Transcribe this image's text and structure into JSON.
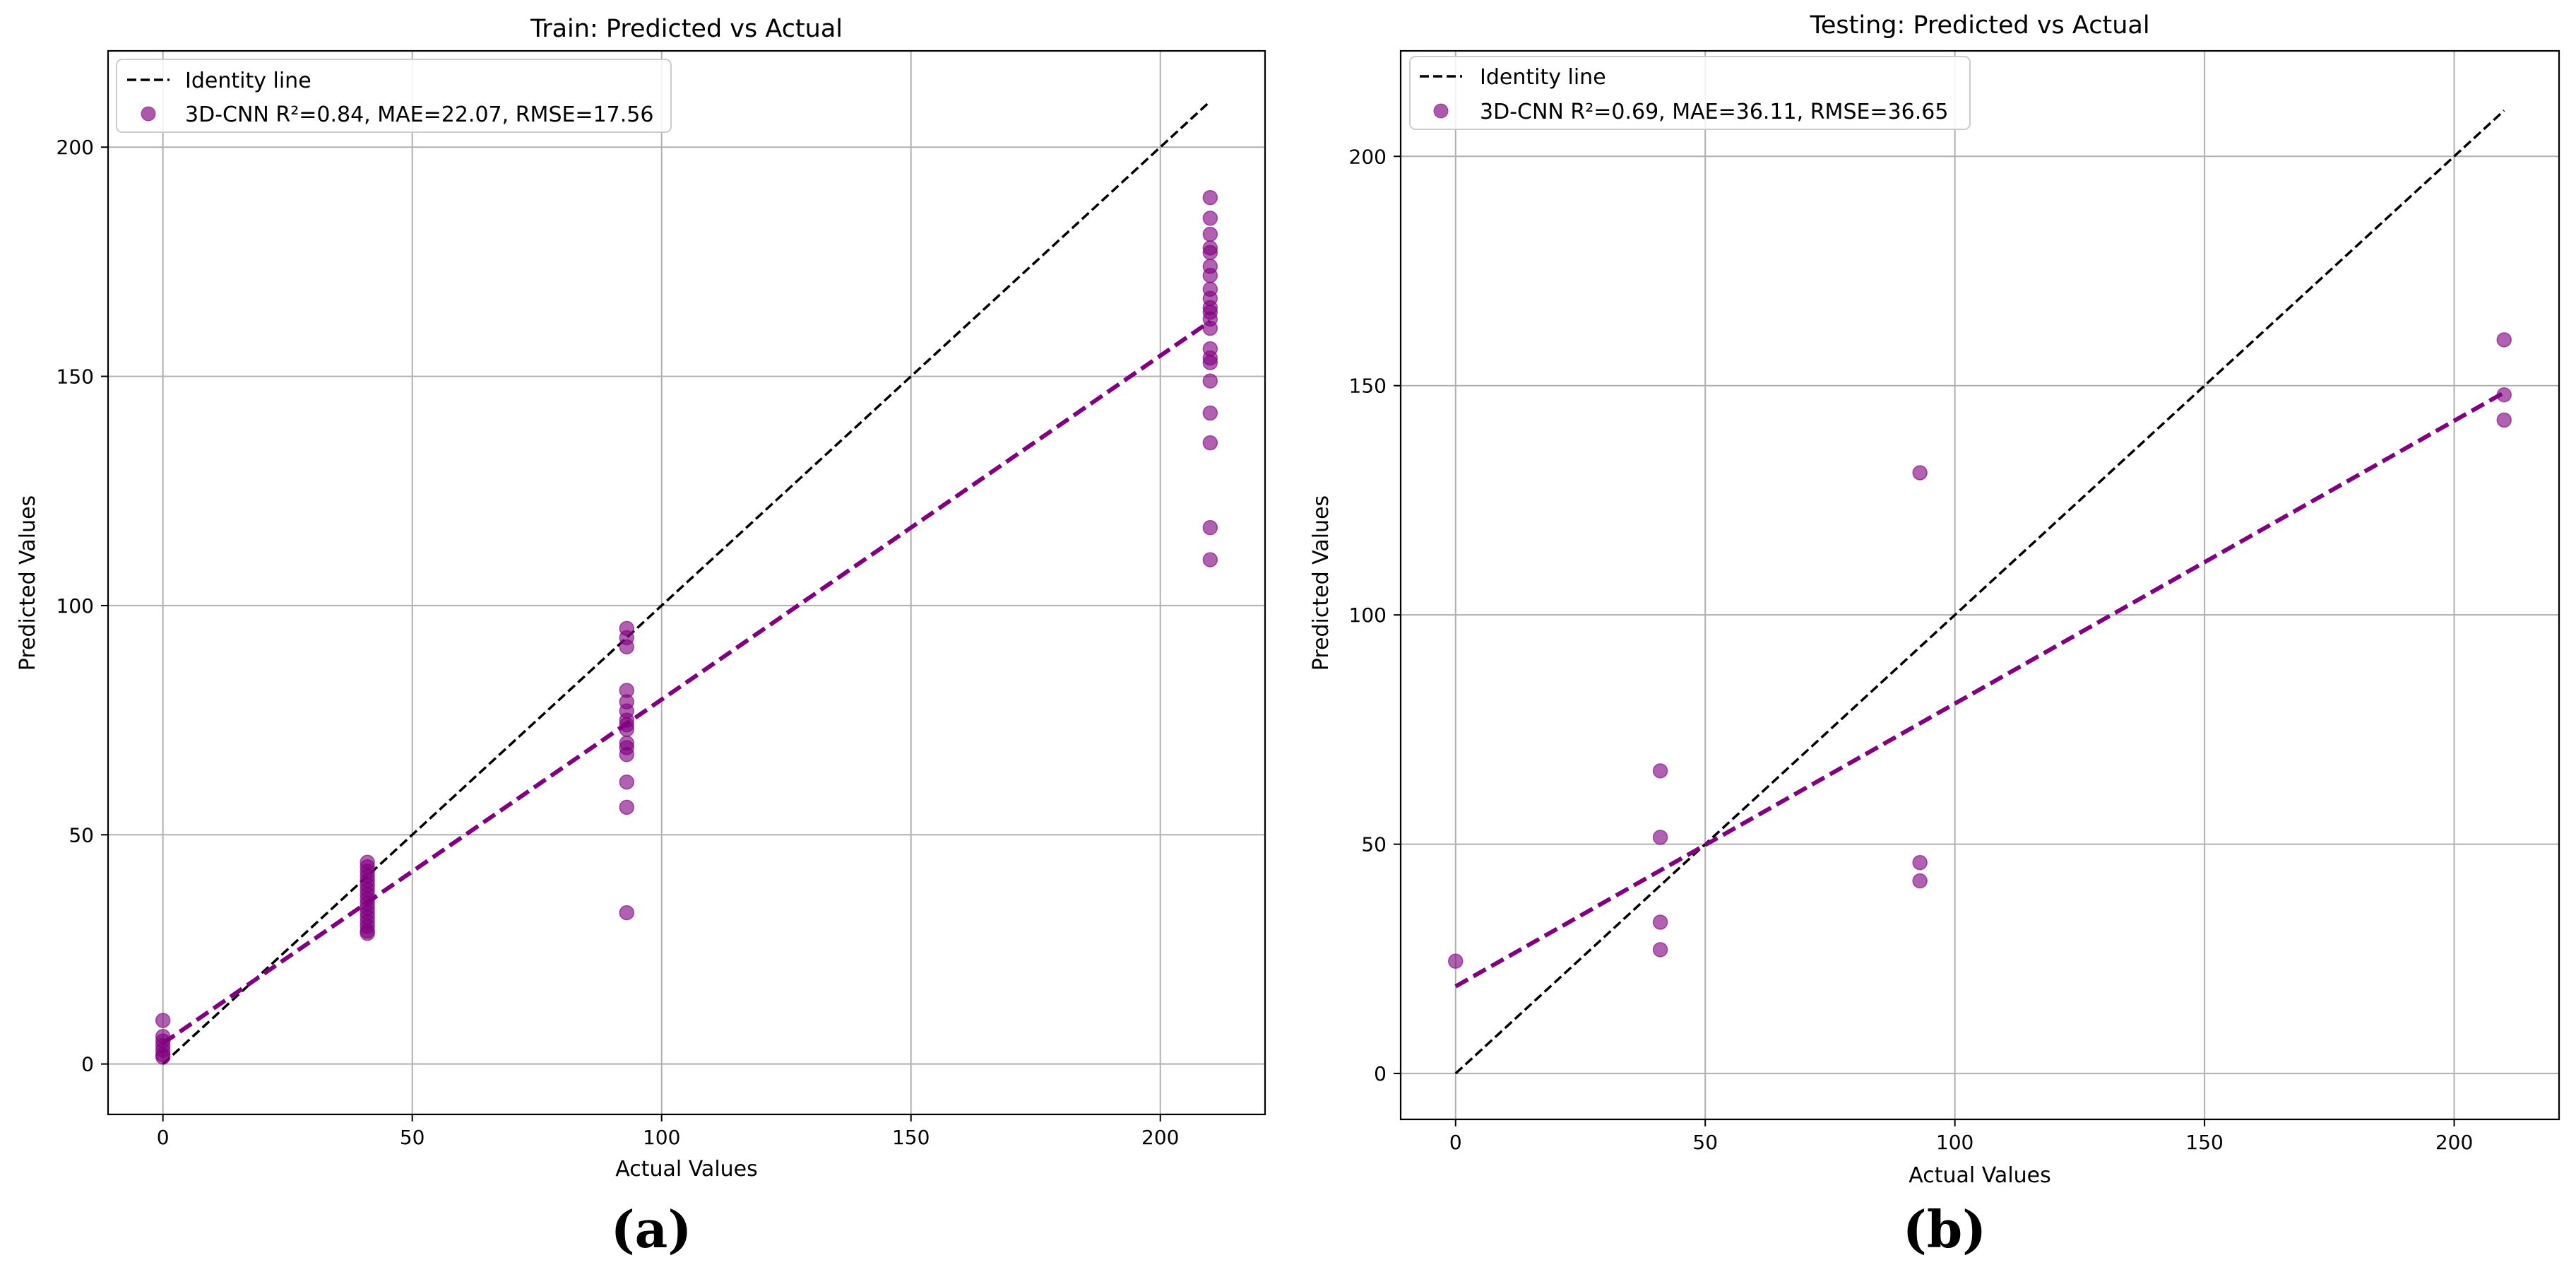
{
  "colors": {
    "scatter": "#800080",
    "fit_line": "#800080",
    "identity_line": "#000000",
    "grid": "#b0b0b0",
    "axes": "#000000"
  },
  "chart_data": [
    {
      "type": "scatter",
      "panel_label": "(a)",
      "title": "Train: Predicted vs Actual",
      "xlabel": "Actual Values",
      "ylabel": "Predicted Values",
      "xlim": [
        -11,
        221
      ],
      "ylim": [
        -11,
        221
      ],
      "xticks": [
        0,
        50,
        100,
        150,
        200
      ],
      "yticks": [
        0,
        50,
        100,
        150,
        200
      ],
      "grid": true,
      "legend_position": "top-left",
      "legend": {
        "identity": "Identity line",
        "scatter": "3D-CNN R²=0.84, MAE=22.07, RMSE=17.56"
      },
      "identity_line": {
        "x": [
          0,
          210
        ],
        "y": [
          0,
          210
        ]
      },
      "fit_line": {
        "x": [
          0,
          210
        ],
        "y": [
          4.5,
          162
        ]
      },
      "points": [
        [
          0,
          9.5
        ],
        [
          0,
          6
        ],
        [
          0,
          5
        ],
        [
          0,
          4
        ],
        [
          0,
          3
        ],
        [
          0,
          2
        ],
        [
          0,
          1.5
        ],
        [
          41,
          44
        ],
        [
          41,
          43
        ],
        [
          41,
          42
        ],
        [
          41,
          41
        ],
        [
          41,
          40
        ],
        [
          41,
          39
        ],
        [
          41,
          38
        ],
        [
          41,
          37
        ],
        [
          41,
          36
        ],
        [
          41,
          35
        ],
        [
          41,
          34
        ],
        [
          41,
          33
        ],
        [
          41,
          32
        ],
        [
          41,
          31
        ],
        [
          41,
          30
        ],
        [
          41,
          29
        ],
        [
          41,
          28.5
        ],
        [
          93,
          95
        ],
        [
          93,
          93
        ],
        [
          93,
          91
        ],
        [
          93,
          81.5
        ],
        [
          93,
          79
        ],
        [
          93,
          77
        ],
        [
          93,
          75
        ],
        [
          93,
          74
        ],
        [
          93,
          73
        ],
        [
          93,
          70
        ],
        [
          93,
          69
        ],
        [
          93,
          67.5
        ],
        [
          93,
          61.5
        ],
        [
          93,
          56
        ],
        [
          93,
          33
        ],
        [
          210,
          189
        ],
        [
          210,
          184.5
        ],
        [
          210,
          181
        ],
        [
          210,
          178
        ],
        [
          210,
          177
        ],
        [
          210,
          174
        ],
        [
          210,
          172
        ],
        [
          210,
          169
        ],
        [
          210,
          167
        ],
        [
          210,
          165
        ],
        [
          210,
          164
        ],
        [
          210,
          162.5
        ],
        [
          210,
          160.5
        ],
        [
          210,
          156
        ],
        [
          210,
          154
        ],
        [
          210,
          153
        ],
        [
          210,
          149
        ],
        [
          210,
          142
        ],
        [
          210,
          135.5
        ],
        [
          210,
          117
        ],
        [
          210,
          110
        ]
      ]
    },
    {
      "type": "scatter",
      "panel_label": "(b)",
      "title": "Testing: Predicted vs Actual",
      "xlabel": "Actual Values",
      "ylabel": "Predicted Values",
      "xlim": [
        -11,
        221
      ],
      "ylim": [
        -10,
        223
      ],
      "xticks": [
        0,
        50,
        100,
        150,
        200
      ],
      "yticks": [
        0,
        50,
        100,
        150,
        200
      ],
      "grid": true,
      "legend_position": "top-left",
      "legend": {
        "identity": "Identity line",
        "scatter": "3D-CNN R²=0.69, MAE=36.11, RMSE=36.65"
      },
      "identity_line": {
        "x": [
          0,
          210
        ],
        "y": [
          0,
          210
        ]
      },
      "fit_line": {
        "x": [
          0,
          210
        ],
        "y": [
          19,
          148.5
        ]
      },
      "points": [
        [
          0,
          24.5
        ],
        [
          41,
          66
        ],
        [
          41,
          51.5
        ],
        [
          41,
          33
        ],
        [
          41,
          27
        ],
        [
          93,
          131
        ],
        [
          93,
          46
        ],
        [
          93,
          42
        ],
        [
          210,
          160
        ],
        [
          210,
          148
        ],
        [
          210,
          142.5
        ]
      ]
    }
  ]
}
